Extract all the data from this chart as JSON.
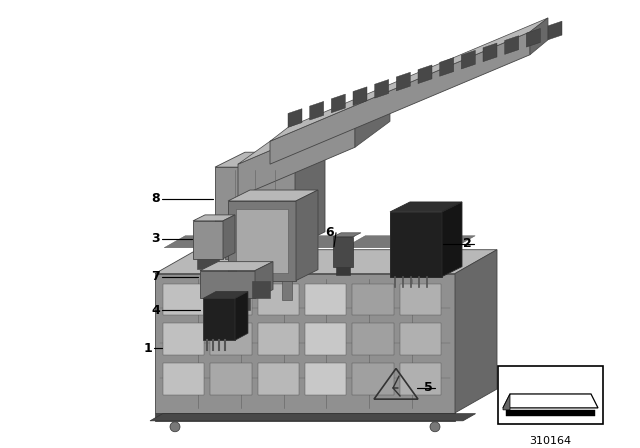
{
  "bg_color": "#ffffff",
  "part_number": "310164",
  "c_front": "#909090",
  "c_top": "#b8b8b8",
  "c_right": "#686868",
  "c_dark": "#484848",
  "c_darker": "#383838",
  "c_light": "#c8c8c8",
  "c_lighter": "#d8d8d8",
  "c_black": "#202020",
  "c_mid": "#787878"
}
